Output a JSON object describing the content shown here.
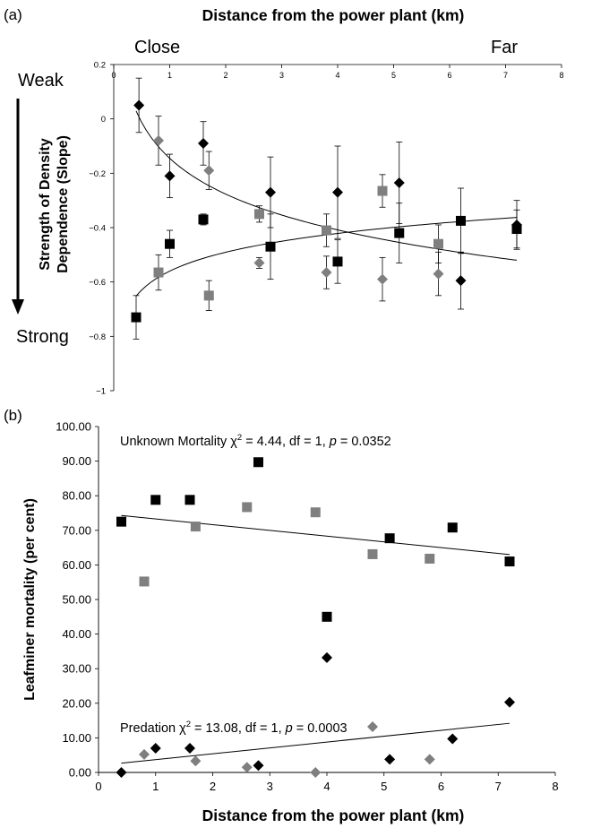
{
  "chart_data": [
    {
      "panel_label": "(a)",
      "type": "scatter",
      "title": "Distance from the power plant (km)",
      "ylabel": "Strength of Density Dependence (Slope)",
      "ylabel_lines": [
        "Strength of Density",
        "Dependence (Slope)"
      ],
      "xlim": [
        0,
        8
      ],
      "ylim": [
        -1,
        0.2
      ],
      "x_ticks": [
        0,
        1,
        2,
        3,
        4,
        5,
        6,
        7,
        8
      ],
      "y_ticks": [
        -1,
        -0.8,
        -0.6,
        -0.4,
        -0.2,
        0,
        0.2
      ],
      "y_tick_labels": [
        "−1",
        "−0.8",
        "−0.6",
        "−0.4",
        "−0.2",
        "0",
        "0.2"
      ],
      "annotations": {
        "close": "Close",
        "far": "Far",
        "weak": "Weak",
        "strong": "Strong"
      },
      "series": [
        {
          "marker": "diamond",
          "color": "#000000",
          "points": [
            {
              "x": 0.45,
              "y": 0.05,
              "err": 0.1
            },
            {
              "x": 1.0,
              "y": -0.21,
              "err": 0.08
            },
            {
              "x": 1.6,
              "y": -0.09,
              "err": 0.08
            },
            {
              "x": 2.8,
              "y": -0.27,
              "err": 0.13
            },
            {
              "x": 4.0,
              "y": -0.27,
              "err": 0.17
            },
            {
              "x": 5.1,
              "y": -0.235,
              "err": 0.15
            },
            {
              "x": 6.2,
              "y": -0.595,
              "err": 0.105
            },
            {
              "x": 7.2,
              "y": -0.39,
              "err": 0.09
            }
          ]
        },
        {
          "marker": "diamond",
          "color": "#7f7f7f",
          "points": [
            {
              "x": 0.8,
              "y": -0.08,
              "err": 0.09
            },
            {
              "x": 1.7,
              "y": -0.19,
              "err": 0.07
            },
            {
              "x": 2.6,
              "y": -0.53,
              "err": 0.02
            },
            {
              "x": 3.8,
              "y": -0.565,
              "err": 0.06
            },
            {
              "x": 4.8,
              "y": -0.59,
              "err": 0.08
            },
            {
              "x": 5.8,
              "y": -0.57,
              "err": 0.08
            }
          ]
        },
        {
          "marker": "square",
          "color": "#000000",
          "points": [
            {
              "x": 0.4,
              "y": -0.73,
              "err": 0.08
            },
            {
              "x": 1.0,
              "y": -0.46,
              "err": 0.05
            },
            {
              "x": 1.6,
              "y": -0.37,
              "err": 0.02
            },
            {
              "x": 2.8,
              "y": -0.47,
              "err": 0.12
            },
            {
              "x": 4.0,
              "y": -0.525,
              "err": 0.08
            },
            {
              "x": 5.1,
              "y": -0.42,
              "err": 0.11
            },
            {
              "x": 6.2,
              "y": -0.375,
              "err": 0.12
            },
            {
              "x": 7.2,
              "y": -0.405,
              "err": 0.07
            }
          ]
        },
        {
          "marker": "square",
          "color": "#7f7f7f",
          "points": [
            {
              "x": 0.8,
              "y": -0.565,
              "err": 0.065
            },
            {
              "x": 1.7,
              "y": -0.65,
              "err": 0.055
            },
            {
              "x": 2.6,
              "y": -0.35,
              "err": 0.03
            },
            {
              "x": 3.8,
              "y": -0.41,
              "err": 0.06
            },
            {
              "x": 4.8,
              "y": -0.265,
              "err": 0.06
            },
            {
              "x": 5.8,
              "y": -0.46,
              "err": 0.07
            }
          ]
        }
      ],
      "trendlines": [
        {
          "type": "logarithmic",
          "coef": -0.19,
          "intercept": -0.145,
          "x_range": [
            0.4,
            7.2
          ]
        },
        {
          "type": "logarithmic",
          "coef": 0.1,
          "intercept": -0.56,
          "x_range": [
            0.4,
            7.2
          ]
        }
      ]
    },
    {
      "panel_label": "(b)",
      "type": "scatter",
      "xlabel": "Distance from the power plant (km)",
      "ylabel": "Leafminer mortality (per cent)",
      "xlim": [
        0,
        8
      ],
      "ylim": [
        0,
        100
      ],
      "x_ticks": [
        0,
        1,
        2,
        3,
        4,
        5,
        6,
        7,
        8
      ],
      "y_ticks": [
        0,
        10,
        20,
        30,
        40,
        50,
        60,
        70,
        80,
        90,
        100
      ],
      "y_tick_labels": [
        "0.00",
        "10.00",
        "20.00",
        "30.00",
        "40.00",
        "50.00",
        "60.00",
        "70.00",
        "80.00",
        "90.00",
        "100.00"
      ],
      "annotations": {
        "unknown": {
          "label": "Unknown Mortality χ",
          "sup": "2",
          "rest": " = 4.44, df = 1, ",
          "p": "p",
          "pval": " = 0.0352"
        },
        "predation": {
          "label": "Predation χ",
          "sup": "2",
          "rest": " = 13.08, df = 1, ",
          "p": "p",
          "pval": " = 0.0003"
        }
      },
      "series": [
        {
          "marker": "square",
          "color": "#000000",
          "points": [
            {
              "x": 0.4,
              "y": 72.5
            },
            {
              "x": 1.0,
              "y": 78.8
            },
            {
              "x": 1.6,
              "y": 78.8
            },
            {
              "x": 2.8,
              "y": 89.7
            },
            {
              "x": 4.0,
              "y": 45.0
            },
            {
              "x": 5.1,
              "y": 67.7
            },
            {
              "x": 6.2,
              "y": 70.8
            },
            {
              "x": 7.2,
              "y": 61.0
            }
          ]
        },
        {
          "marker": "square",
          "color": "#7f7f7f",
          "points": [
            {
              "x": 0.8,
              "y": 55.2
            },
            {
              "x": 1.7,
              "y": 71.1
            },
            {
              "x": 2.6,
              "y": 76.7
            },
            {
              "x": 3.8,
              "y": 75.2
            },
            {
              "x": 4.8,
              "y": 63.1
            },
            {
              "x": 5.8,
              "y": 61.8
            }
          ]
        },
        {
          "marker": "diamond",
          "color": "#000000",
          "points": [
            {
              "x": 0.4,
              "y": 0.0
            },
            {
              "x": 1.0,
              "y": 7.0
            },
            {
              "x": 1.6,
              "y": 7.0
            },
            {
              "x": 2.8,
              "y": 2.0
            },
            {
              "x": 4.0,
              "y": 33.2
            },
            {
              "x": 5.1,
              "y": 3.8
            },
            {
              "x": 6.2,
              "y": 9.7
            },
            {
              "x": 7.2,
              "y": 20.3
            }
          ]
        },
        {
          "marker": "diamond",
          "color": "#7f7f7f",
          "points": [
            {
              "x": 0.8,
              "y": 5.2
            },
            {
              "x": 1.7,
              "y": 3.3
            },
            {
              "x": 2.6,
              "y": 1.5
            },
            {
              "x": 3.8,
              "y": 0.0
            },
            {
              "x": 4.8,
              "y": 13.2
            },
            {
              "x": 5.8,
              "y": 3.8
            }
          ]
        }
      ],
      "trendlines": [
        {
          "type": "linear",
          "x": [
            0.4,
            7.2
          ],
          "y": [
            74.3,
            63.0
          ]
        },
        {
          "type": "linear",
          "x": [
            0.4,
            7.2
          ],
          "y": [
            2.7,
            14.2
          ]
        }
      ]
    }
  ]
}
